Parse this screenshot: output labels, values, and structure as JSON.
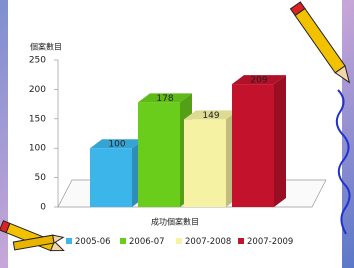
{
  "chart_data": {
    "type": "bar3d",
    "y_label": "個案數目",
    "x_label": "成功個案數目",
    "categories": [
      "2005-06",
      "2006-07",
      "2007-2008",
      "2007-2009"
    ],
    "values": [
      100,
      178,
      149,
      209
    ],
    "colors": [
      "#3cb6ea",
      "#6acd1c",
      "#f6f2a4",
      "#c3122c"
    ],
    "ylim": [
      0,
      250
    ],
    "yticks": [
      0,
      50,
      100,
      150,
      200,
      250
    ]
  }
}
